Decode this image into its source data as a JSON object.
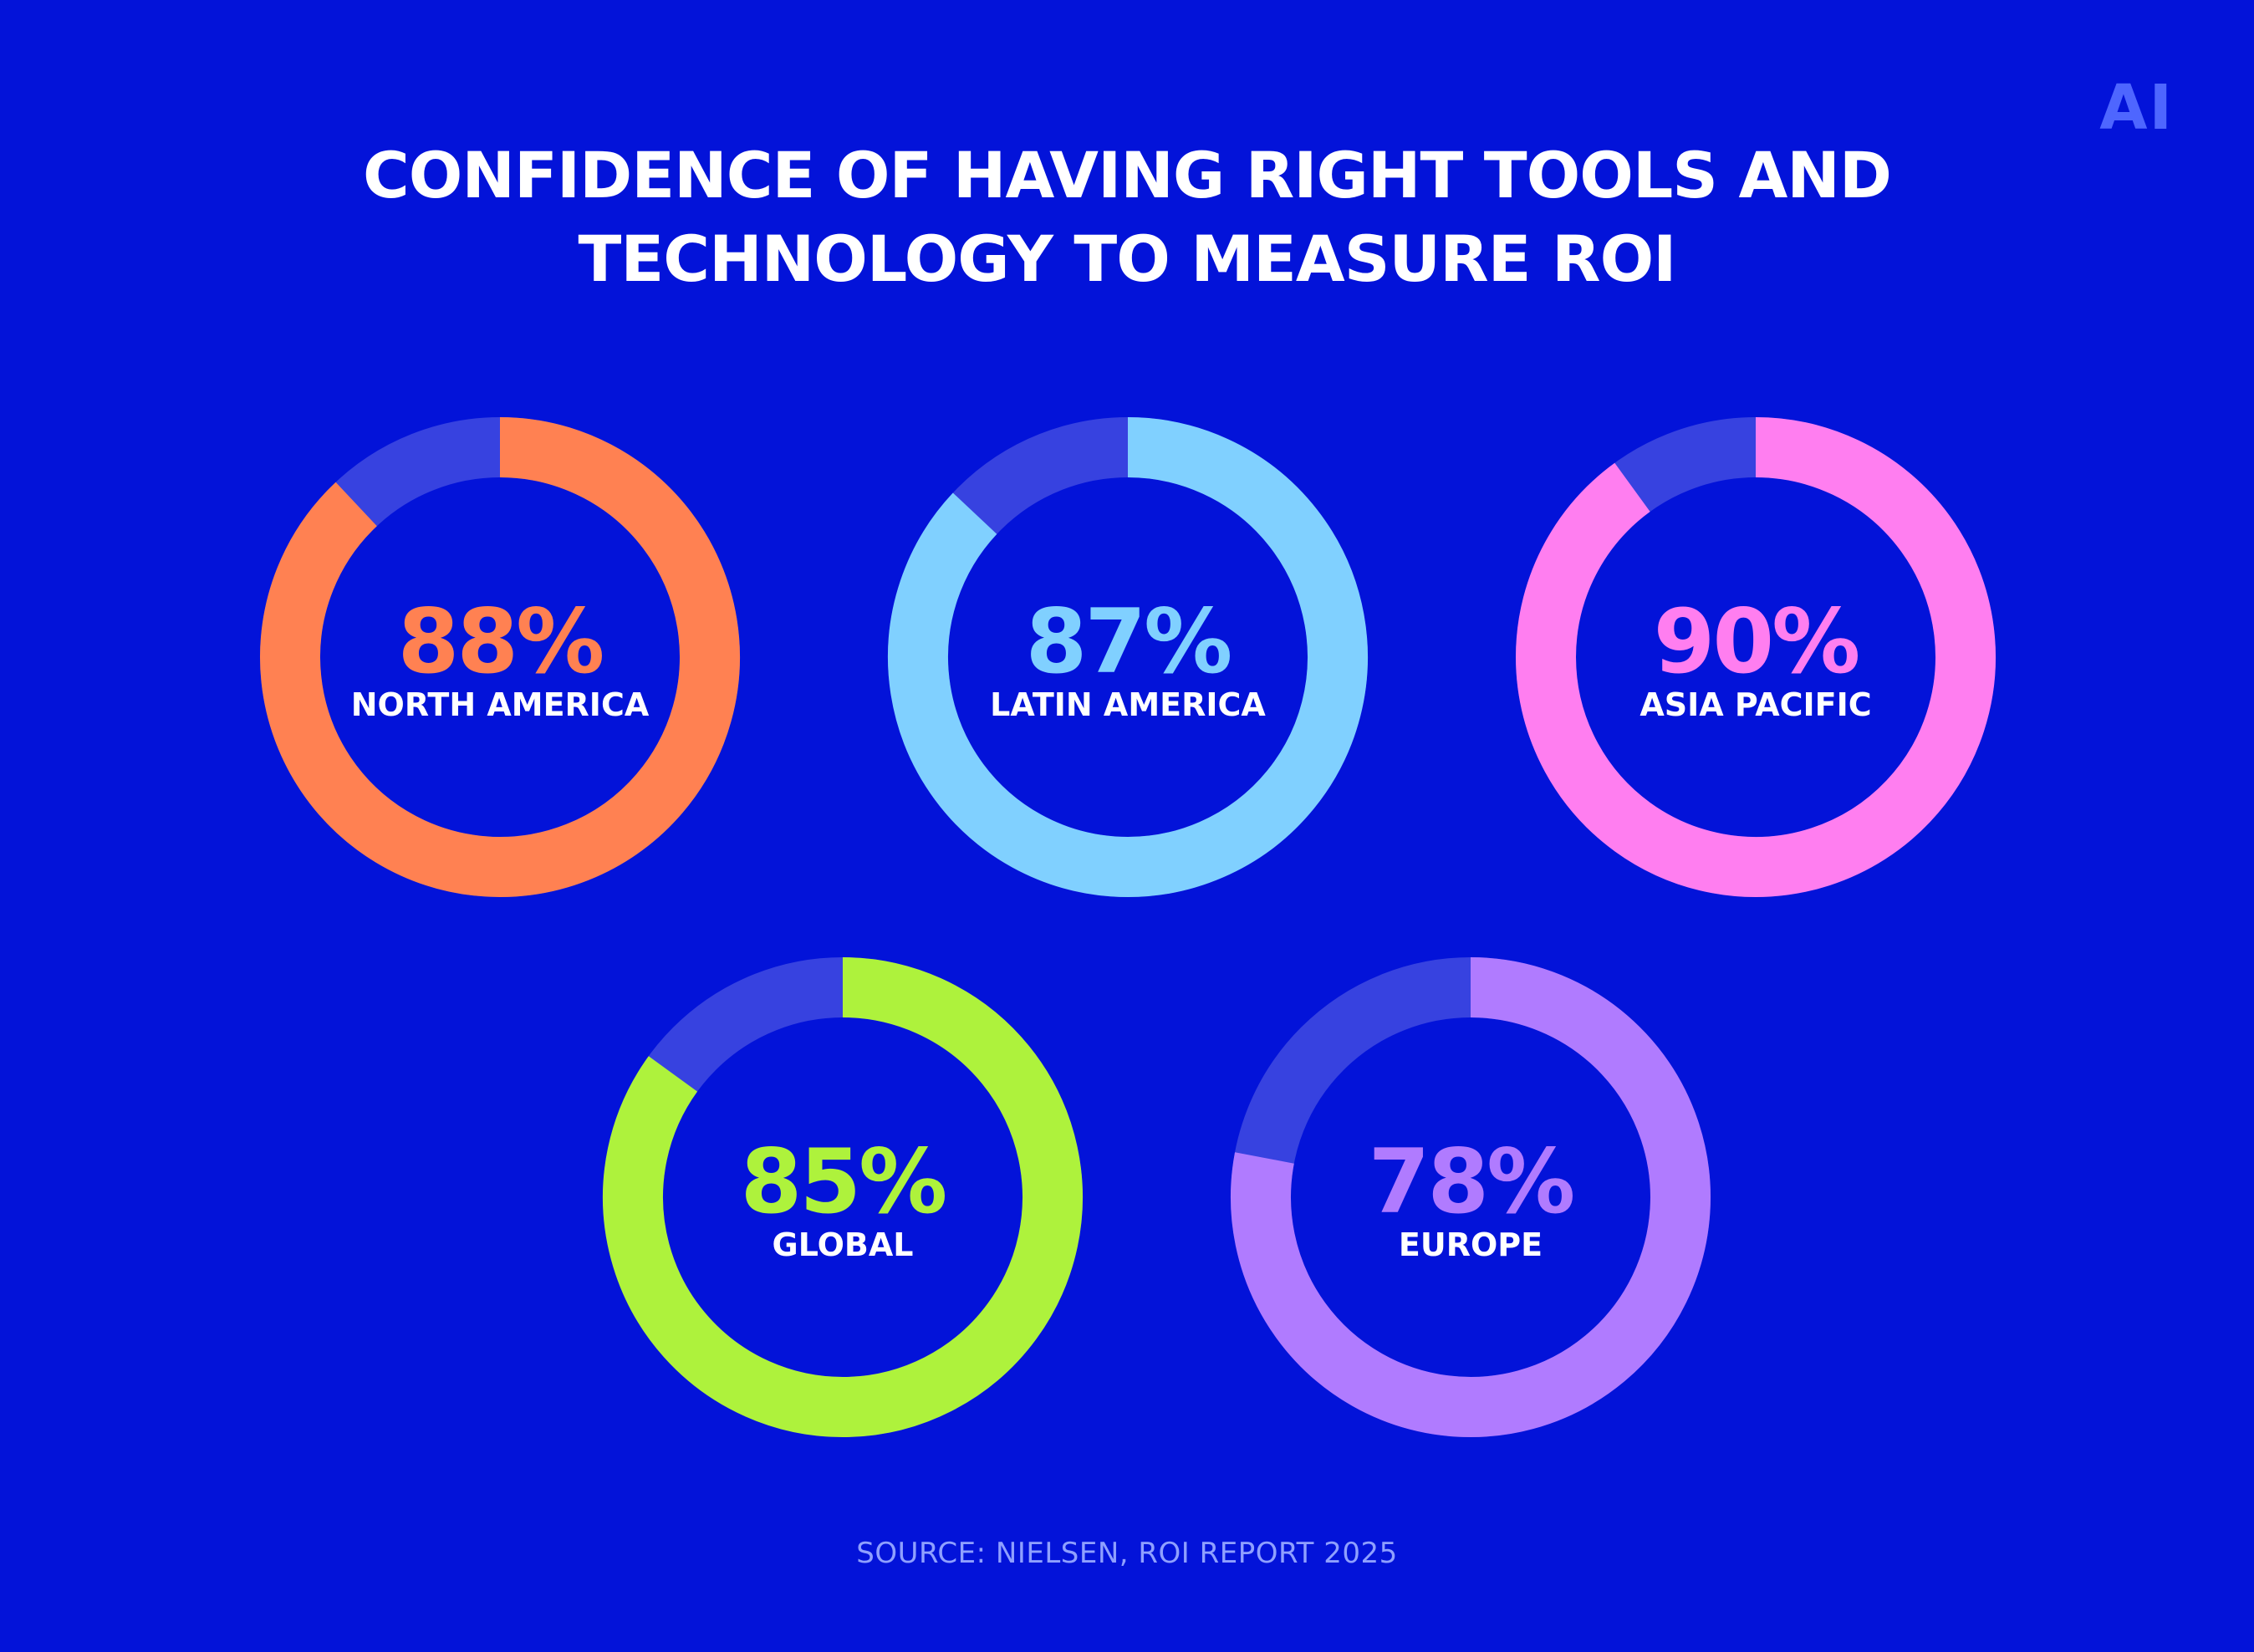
{
  "logo_text": "AI",
  "title_lines": [
    "CONFIDENCE OF HAVING RIGHT TOOLS AND",
    "TECHNOLOGY TO MEASURE ROI"
  ],
  "source": "SOURCE: NIELSEN, ROI REPORT 2025",
  "colors": {
    "background": "#0313d9",
    "track": "#3742e0",
    "logo": "#4e66ff",
    "source_text": "#8fa0ff"
  },
  "chart_data": {
    "type": "pie",
    "title": "CONFIDENCE OF HAVING RIGHT TOOLS AND TECHNOLOGY TO MEASURE ROI",
    "unit": "%",
    "series": [
      {
        "name": "NORTH AMERICA",
        "value": 88,
        "label": "88%",
        "color": "#ff8152"
      },
      {
        "name": "LATIN AMERICA",
        "value": 87,
        "label": "87%",
        "color": "#80d0ff"
      },
      {
        "name": "ASIA PACIFIC",
        "value": 90,
        "label": "90%",
        "color": "#ff7ef0"
      },
      {
        "name": "GLOBAL",
        "value": 85,
        "label": "85%",
        "color": "#aef23c"
      },
      {
        "name": "EUROPE",
        "value": 78,
        "label": "78%",
        "color": "#b07bff"
      }
    ]
  }
}
